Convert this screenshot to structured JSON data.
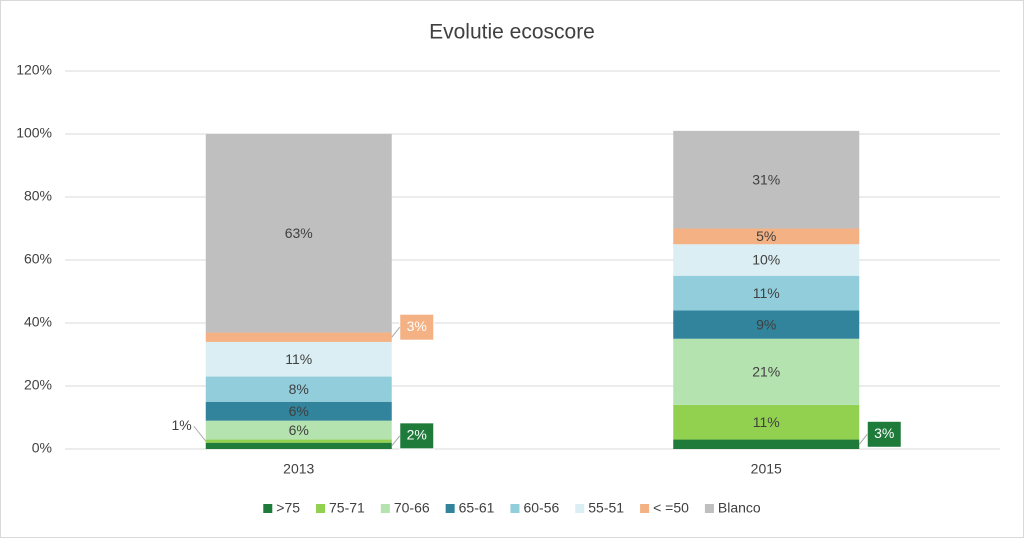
{
  "chart_data": {
    "type": "stacked_bar",
    "title": "Evolutie ecoscore",
    "categories": [
      "2013",
      "2015"
    ],
    "series": [
      {
        "name": ">75",
        "color": "#1e7b3a",
        "values": [
          2,
          3
        ],
        "value_labels": [
          "2%",
          "3%"
        ]
      },
      {
        "name": "75-71",
        "color": "#92d050",
        "values": [
          1,
          11
        ],
        "value_labels": [
          "1%",
          "11%"
        ]
      },
      {
        "name": "70-66",
        "color": "#b5e3b0",
        "values": [
          6,
          21
        ],
        "value_labels": [
          "6%",
          "21%"
        ]
      },
      {
        "name": "65-61",
        "color": "#31849b",
        "values": [
          6,
          9
        ],
        "value_labels": [
          "6%",
          "9%"
        ]
      },
      {
        "name": "60-56",
        "color": "#92cddc",
        "values": [
          8,
          11
        ],
        "value_labels": [
          "8%",
          "11%"
        ]
      },
      {
        "name": "55-51",
        "color": "#daeef3",
        "values": [
          11,
          10
        ],
        "value_labels": [
          "11%",
          "10%"
        ]
      },
      {
        "name": "< =50",
        "color": "#f4b183",
        "values": [
          3,
          5
        ],
        "value_labels": [
          "3%",
          "5%"
        ]
      },
      {
        "name": "Blanco",
        "color": "#bfbfbf",
        "values": [
          63,
          31
        ],
        "value_labels": [
          "63%",
          "31%"
        ]
      }
    ],
    "ylim": [
      0,
      120
    ],
    "yticks": [
      {
        "value": 0,
        "label": "0%"
      },
      {
        "value": 20,
        "label": "20%"
      },
      {
        "value": 40,
        "label": "40%"
      },
      {
        "value": 60,
        "label": "60%"
      },
      {
        "value": 80,
        "label": "80%"
      },
      {
        "value": 100,
        "label": "100%"
      },
      {
        "value": 120,
        "label": "120%"
      }
    ],
    "grid": true,
    "legend": "bottom"
  }
}
